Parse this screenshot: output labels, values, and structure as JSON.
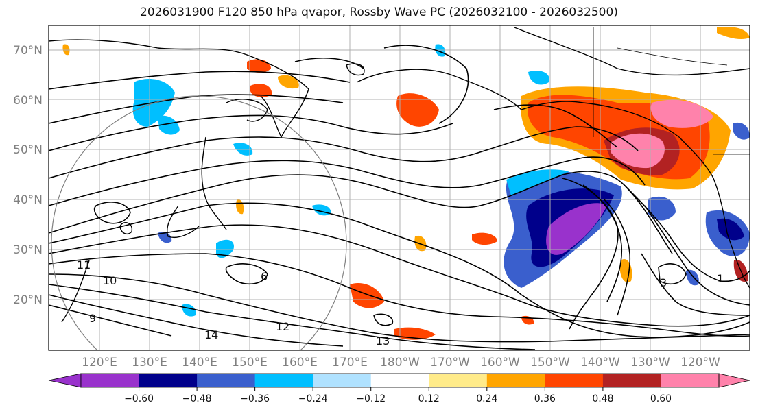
{
  "title": "2026031900 F120 850 hPa qvapor, Rossby Wave PC (2026032100 - 2026032500)",
  "lat_labels": [
    "70°N",
    "60°N",
    "50°N",
    "40°N",
    "30°N",
    "20°N"
  ],
  "lon_labels": [
    "120°E",
    "130°E",
    "140°E",
    "150°E",
    "160°E",
    "170°E",
    "180°W",
    "170°W",
    "160°W",
    "150°W",
    "140°W",
    "130°W",
    "120°W"
  ],
  "contour_labels": [
    "11",
    "12",
    "13",
    "14",
    "6",
    "3",
    "1",
    "9",
    "10"
  ],
  "colorbar": {
    "colors": [
      "#9932cc",
      "#00008b",
      "#3a5fcd",
      "#00bfff",
      "#b0e2ff",
      "#ffffff",
      "#ffeb8a",
      "#ffa500",
      "#ff4500",
      "#b22222",
      "#ff82ab"
    ],
    "ticks": [
      "−0.60",
      "−0.48",
      "−0.36",
      "−0.24",
      "−0.12",
      "0.12",
      "0.24",
      "0.36",
      "0.48",
      "0.60"
    ]
  }
}
